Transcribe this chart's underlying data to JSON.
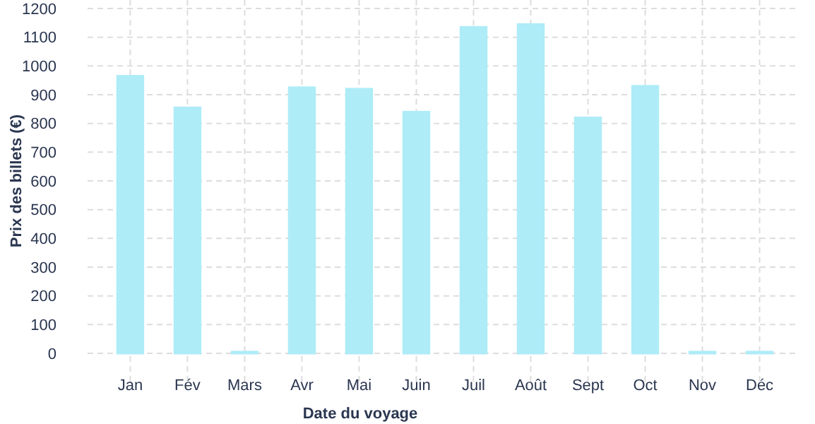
{
  "chart_data": {
    "type": "bar",
    "xlabel": "Date du voyage",
    "ylabel": "Prix des billets (€)",
    "categories": [
      "Jan",
      "Fév",
      "Mars",
      "Avr",
      "Mai",
      "Juin",
      "Juil",
      "Août",
      "Sept",
      "Oct",
      "Nov",
      "Déc"
    ],
    "values": [
      965,
      855,
      5,
      925,
      920,
      840,
      1135,
      1145,
      820,
      930,
      5,
      5
    ],
    "color": "#aeecf7",
    "ylim": [
      0,
      1200
    ],
    "yticks": [
      0,
      100,
      200,
      300,
      400,
      500,
      600,
      700,
      800,
      900,
      1000,
      1100,
      1200
    ],
    "grid": true
  }
}
